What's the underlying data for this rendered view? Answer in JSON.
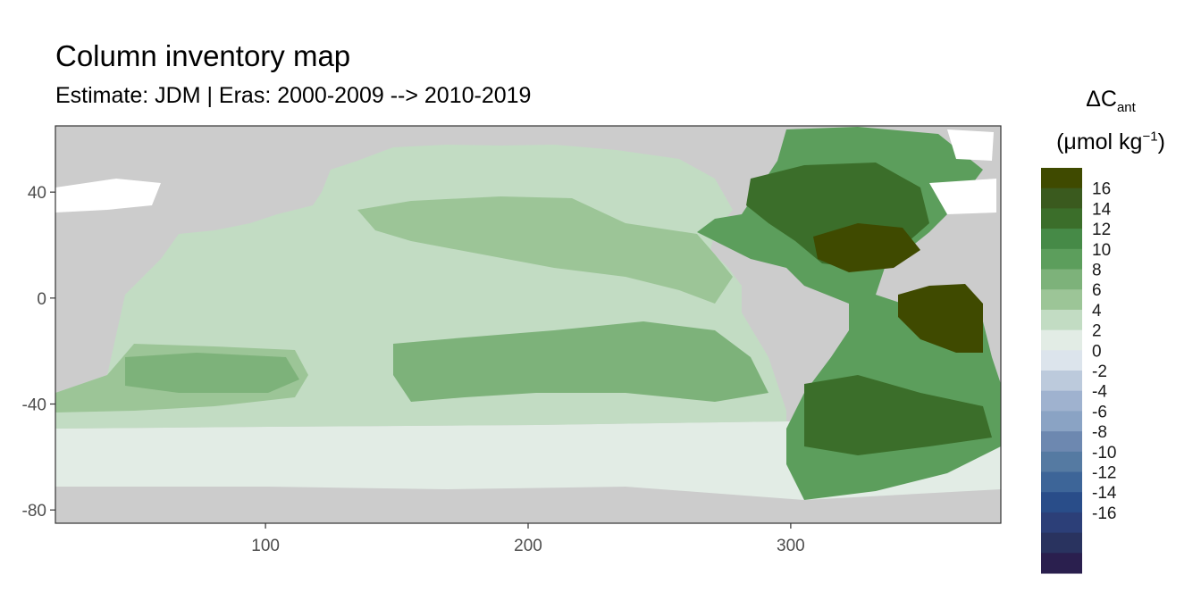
{
  "chart_data": {
    "type": "heatmap",
    "title": "Column inventory map",
    "subtitle": "Estimate: JDM  | Eras: 2000-2009 --> 2010-2019",
    "legend": {
      "title_main": "ΔC",
      "title_sub": "ant",
      "unit_main": "(μmol kg",
      "unit_sup": "−1",
      "unit_end": ")",
      "position": "right",
      "breaks": [
        16,
        14,
        12,
        10,
        8,
        6,
        4,
        2,
        0,
        -2,
        -4,
        -6,
        -8,
        -10,
        -12,
        -14,
        -16
      ],
      "colors": [
        "#3f4a00",
        "#3a5a1e",
        "#3b6e2a",
        "#468a47",
        "#5c9e5c",
        "#7db27a",
        "#9cc597",
        "#c2dcc3",
        "#e2ece5",
        "#dce4ec",
        "#bccadc",
        "#9fb2cf",
        "#8aa3c4",
        "#6d88b0",
        "#557aa2",
        "#3d6598",
        "#294d89",
        "#2c3f78",
        "#29335f",
        "#2a1f4e"
      ]
    },
    "x_axis": {
      "ticks": [
        100,
        200,
        300
      ],
      "xlim": [
        20,
        380
      ]
    },
    "y_axis": {
      "ticks": [
        40,
        0,
        -40,
        -80
      ],
      "ylim": [
        -85,
        65
      ]
    },
    "grid": false,
    "land_color": "#cccccc",
    "data_description_values": {
      "north_atlantic_max": 16,
      "south_atlantic": 12,
      "pacific_typical": 4,
      "southern_ocean": 2
    }
  }
}
